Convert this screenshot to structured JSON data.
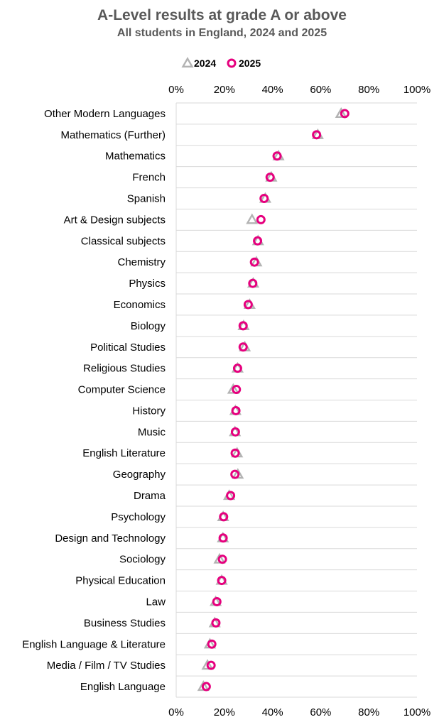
{
  "chart_data": {
    "type": "scatter",
    "title": "A-Level results at grade A or above",
    "subtitle": "All students in England, 2024 and 2025",
    "xlim": [
      0,
      100
    ],
    "x_ticks": [
      "0%",
      "20%",
      "40%",
      "60%",
      "80%",
      "100%"
    ],
    "x_tick_values": [
      0,
      20,
      40,
      60,
      80,
      100
    ],
    "legend_position": "top",
    "grid": "horizontal row separators",
    "categories": [
      "Other Modern Languages",
      "Mathematics (Further)",
      "Mathematics",
      "French",
      "Spanish",
      "Art & Design subjects",
      "Classical subjects",
      "Chemistry",
      "Physics",
      "Economics",
      "Biology",
      "Political Studies",
      "Religious Studies",
      "Computer Science",
      "History",
      "Music",
      "English Literature",
      "Geography",
      "Drama",
      "Psychology",
      "Design and Technology",
      "Sociology",
      "Physical Education",
      "Law",
      "Business Studies",
      "English Language & Literature",
      "Media / Film / TV Studies",
      "English Language"
    ],
    "series": [
      {
        "name": "2024",
        "marker": "triangle",
        "color": "#b3b3b3",
        "values": [
          68.5,
          58.8,
          42.5,
          39.5,
          37.0,
          31.5,
          34.0,
          33.3,
          32.0,
          30.5,
          28.0,
          28.5,
          25.5,
          23.7,
          24.6,
          24.4,
          25.3,
          25.6,
          22.0,
          19.5,
          19.4,
          18.0,
          18.9,
          16.4,
          16.0,
          14.0,
          13.0,
          11.3
        ]
      },
      {
        "name": "2025",
        "marker": "circle",
        "color": "#e6007e",
        "values": [
          70.0,
          58.3,
          41.9,
          39.0,
          36.5,
          35.2,
          33.8,
          32.5,
          31.8,
          29.9,
          27.8,
          27.8,
          25.5,
          25.0,
          24.8,
          24.6,
          24.5,
          24.4,
          22.6,
          19.7,
          19.5,
          19.2,
          18.9,
          16.9,
          16.5,
          14.8,
          14.5,
          12.5
        ]
      }
    ]
  }
}
